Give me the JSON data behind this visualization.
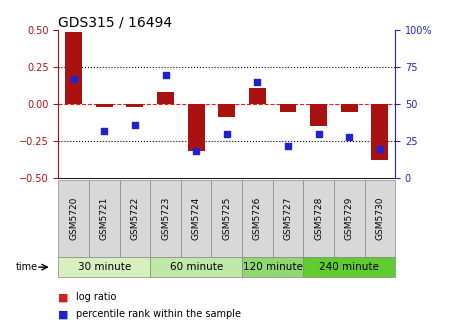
{
  "title": "GDS315 / 16494",
  "samples": [
    "GSM5720",
    "GSM5721",
    "GSM5722",
    "GSM5723",
    "GSM5724",
    "GSM5725",
    "GSM5726",
    "GSM5727",
    "GSM5728",
    "GSM5729",
    "GSM5730"
  ],
  "log_ratio": [
    0.49,
    -0.02,
    -0.02,
    0.08,
    -0.32,
    -0.09,
    0.11,
    -0.05,
    -0.15,
    -0.05,
    -0.38
  ],
  "percentile": [
    67,
    32,
    36,
    70,
    18,
    30,
    65,
    22,
    30,
    28,
    20
  ],
  "ylim_left": [
    -0.5,
    0.5
  ],
  "ylim_right": [
    0,
    100
  ],
  "yticks_left": [
    -0.5,
    -0.25,
    0.0,
    0.25,
    0.5
  ],
  "yticks_right": [
    0,
    25,
    50,
    75,
    100
  ],
  "hline_y": 0.0,
  "dotted_lines": [
    -0.25,
    0.25
  ],
  "bar_color": "#aa1111",
  "dot_color": "#2222cc",
  "bg_color": "#ffffff",
  "time_groups": [
    {
      "label": "30 minute",
      "start": 0,
      "end": 2,
      "color": "#d8f0c0"
    },
    {
      "label": "60 minute",
      "start": 3,
      "end": 5,
      "color": "#c0e8a8"
    },
    {
      "label": "120 minute",
      "start": 6,
      "end": 7,
      "color": "#90d870"
    },
    {
      "label": "240 minute",
      "start": 8,
      "end": 10,
      "color": "#60cc30"
    }
  ],
  "legend_log_ratio_color": "#cc2222",
  "legend_percentile_color": "#2222cc",
  "tick_label_fontsize": 7,
  "title_fontsize": 10,
  "label_fontsize": 7,
  "sample_label_fontsize": 6.5,
  "time_label_fontsize": 7.5
}
